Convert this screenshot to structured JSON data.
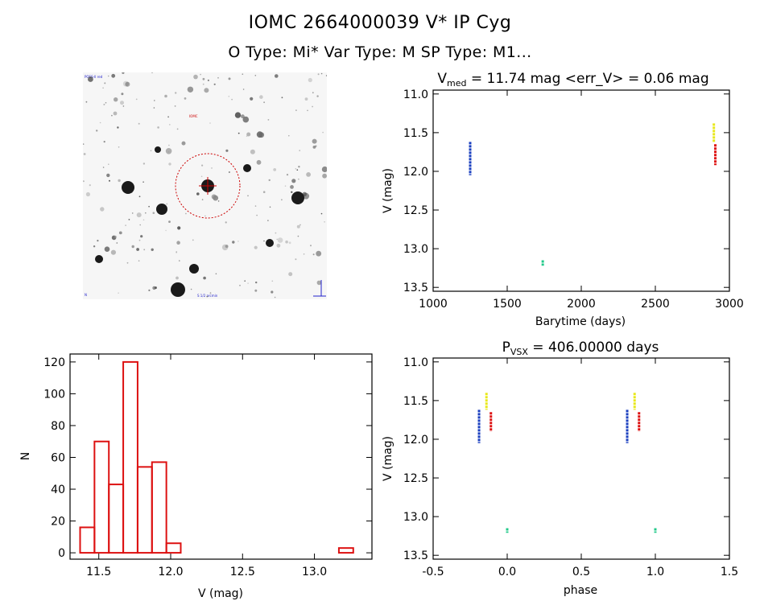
{
  "header": {
    "title": "IOMC 2664000039    V* IP Cyg",
    "subtitle": "O Type: Mi*  Var Type: M   SP Type: M1..."
  },
  "finding_chart": {
    "labels": {
      "top_left": "POSS-II red",
      "marker": "IOMC",
      "bottom_left": "N",
      "bottom_center": "S 1/2 arcmin"
    },
    "colors": {
      "circle": "#cc0000",
      "label_blue": "#2222cc",
      "label_red": "#cc0000"
    }
  },
  "colors": {
    "blue": "#1a3fbf",
    "yellow": "#e8e81a",
    "red": "#dd1111",
    "green": "#22c98a",
    "hist": "#dd1111"
  },
  "chart_data": [
    {
      "type": "scatter",
      "id": "lightcurve",
      "title_main": "V",
      "title_sub": "med",
      "title_rest": " = 11.74 mag <err_V> = 0.06 mag",
      "xlabel": "Barytime (days)",
      "ylabel": "V (mag)",
      "xlim": [
        1000,
        3000
      ],
      "ylim": [
        13.55,
        10.95
      ],
      "xticks": [
        1000,
        1500,
        2000,
        2500,
        3000
      ],
      "yticks": [
        11.0,
        11.5,
        12.0,
        12.5,
        13.0,
        13.5
      ],
      "series": [
        {
          "color_key": "blue",
          "segments": [
            {
              "x": 1250,
              "y_from": 11.62,
              "y_to": 12.05
            }
          ]
        },
        {
          "color_key": "yellow",
          "segments": [
            {
              "x": 2895,
              "y_from": 11.38,
              "y_to": 11.62
            }
          ]
        },
        {
          "color_key": "red",
          "segments": [
            {
              "x": 2905,
              "y_from": 11.65,
              "y_to": 11.92
            }
          ]
        },
        {
          "color_key": "green",
          "segments": [
            {
              "x": 1740,
              "y_from": 13.15,
              "y_to": 13.22
            }
          ]
        }
      ]
    },
    {
      "type": "bar",
      "id": "histogram",
      "title": "",
      "xlabel": "V (mag)",
      "ylabel": "N",
      "xlim": [
        11.3,
        13.4
      ],
      "ylim": [
        -4,
        125
      ],
      "xticks": [
        11.5,
        12.0,
        12.5,
        13.0
      ],
      "yticks": [
        0,
        20,
        40,
        60,
        80,
        100,
        120
      ],
      "bin_width": 0.1,
      "bins": [
        {
          "left": 11.37,
          "count": 16
        },
        {
          "left": 11.47,
          "count": 70
        },
        {
          "left": 11.57,
          "count": 43
        },
        {
          "left": 11.67,
          "count": 120
        },
        {
          "left": 11.77,
          "count": 54
        },
        {
          "left": 11.87,
          "count": 57
        },
        {
          "left": 11.97,
          "count": 6
        },
        {
          "left": 13.17,
          "count": 3
        }
      ]
    },
    {
      "type": "scatter",
      "id": "phased",
      "title_main": "P",
      "title_sub": "VSX",
      "title_rest": " = 406.00000 days",
      "xlabel": "phase",
      "ylabel": "V (mag)",
      "xlim": [
        -0.5,
        1.5
      ],
      "ylim": [
        13.55,
        10.95
      ],
      "xticks": [
        -0.5,
        0.0,
        0.5,
        1.0,
        1.5
      ],
      "yticks": [
        11.0,
        11.5,
        12.0,
        12.5,
        13.0,
        13.5
      ],
      "series": [
        {
          "color_key": "blue",
          "segments": [
            {
              "x": -0.19,
              "y_from": 11.62,
              "y_to": 12.05
            },
            {
              "x": 0.81,
              "y_from": 11.62,
              "y_to": 12.05
            }
          ]
        },
        {
          "color_key": "yellow",
          "segments": [
            {
              "x": -0.14,
              "y_from": 11.4,
              "y_to": 11.62
            },
            {
              "x": 0.86,
              "y_from": 11.4,
              "y_to": 11.62
            }
          ]
        },
        {
          "color_key": "red",
          "segments": [
            {
              "x": -0.11,
              "y_from": 11.65,
              "y_to": 11.9
            },
            {
              "x": 0.89,
              "y_from": 11.65,
              "y_to": 11.9
            }
          ]
        },
        {
          "color_key": "green",
          "segments": [
            {
              "x": 0.0,
              "y_from": 13.15,
              "y_to": 13.21
            },
            {
              "x": 1.0,
              "y_from": 13.15,
              "y_to": 13.21
            }
          ]
        }
      ]
    }
  ]
}
